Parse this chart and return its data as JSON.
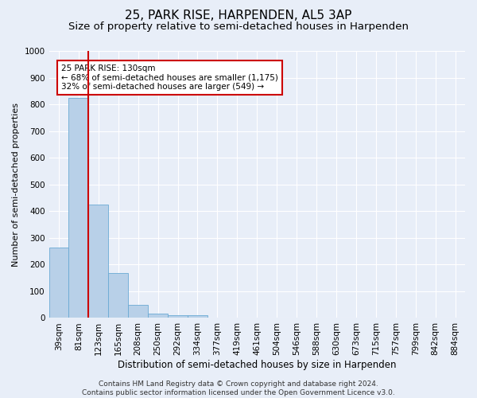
{
  "title1": "25, PARK RISE, HARPENDEN, AL5 3AP",
  "title2": "Size of property relative to semi-detached houses in Harpenden",
  "xlabel": "Distribution of semi-detached houses by size in Harpenden",
  "ylabel": "Number of semi-detached properties",
  "categories": [
    "39sqm",
    "81sqm",
    "123sqm",
    "165sqm",
    "208sqm",
    "250sqm",
    "292sqm",
    "334sqm",
    "377sqm",
    "419sqm",
    "461sqm",
    "504sqm",
    "546sqm",
    "588sqm",
    "630sqm",
    "673sqm",
    "715sqm",
    "757sqm",
    "799sqm",
    "842sqm",
    "884sqm"
  ],
  "values": [
    265,
    825,
    425,
    168,
    50,
    15,
    10,
    10,
    0,
    0,
    0,
    0,
    0,
    0,
    0,
    0,
    0,
    0,
    0,
    0,
    0
  ],
  "bar_color": "#b8d0e8",
  "bar_edge_color": "#6aaad4",
  "vline_x": 2.5,
  "vline_color": "#cc0000",
  "annotation_text": "25 PARK RISE: 130sqm\n← 68% of semi-detached houses are smaller (1,175)\n32% of semi-detached houses are larger (549) →",
  "annotation_box_color": "white",
  "annotation_box_edge_color": "#cc0000",
  "ylim": [
    0,
    1000
  ],
  "yticks": [
    0,
    100,
    200,
    300,
    400,
    500,
    600,
    700,
    800,
    900,
    1000
  ],
  "background_color": "#e8eef8",
  "grid_color": "white",
  "footer": "Contains HM Land Registry data © Crown copyright and database right 2024.\nContains public sector information licensed under the Open Government Licence v3.0.",
  "title1_fontsize": 11,
  "title2_fontsize": 9.5,
  "xlabel_fontsize": 8.5,
  "ylabel_fontsize": 8,
  "tick_fontsize": 7.5,
  "annotation_fontsize": 7.5,
  "footer_fontsize": 6.5
}
